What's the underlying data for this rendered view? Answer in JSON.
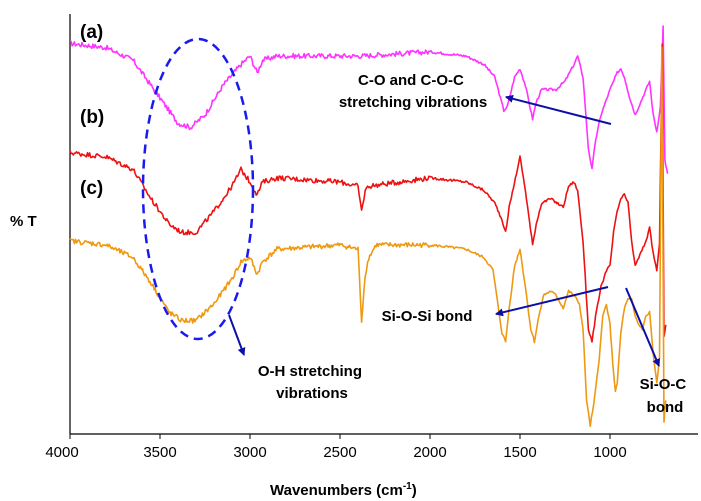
{
  "chart_data": {
    "type": "line",
    "xlabel": "Wavenumbers (cm",
    "xlabel_sup": "-1",
    "xlabel_close": ")",
    "ylabel": "% T",
    "xlim": [
      4000,
      650
    ],
    "x_reversed": true,
    "grid": false,
    "xticks": [
      4000,
      3500,
      3000,
      2500,
      2000,
      1500,
      1000
    ],
    "xtick_labels": [
      "4000",
      "3500",
      "3000",
      "2500",
      "2000",
      "1500",
      "1000"
    ],
    "series": [
      {
        "name": "(a)",
        "color": "#ff33ff",
        "points": [
          [
            4000,
            0.93
          ],
          [
            3800,
            0.92
          ],
          [
            3650,
            0.89
          ],
          [
            3500,
            0.8
          ],
          [
            3400,
            0.74
          ],
          [
            3330,
            0.73
          ],
          [
            3250,
            0.76
          ],
          [
            3150,
            0.83
          ],
          [
            3050,
            0.88
          ],
          [
            3000,
            0.9
          ],
          [
            2960,
            0.86
          ],
          [
            2930,
            0.89
          ],
          [
            2850,
            0.9
          ],
          [
            2500,
            0.9
          ],
          [
            2380,
            0.9
          ],
          [
            2000,
            0.91
          ],
          [
            1800,
            0.9
          ],
          [
            1700,
            0.88
          ],
          [
            1640,
            0.85
          ],
          [
            1590,
            0.77
          ],
          [
            1570,
            0.78
          ],
          [
            1530,
            0.85
          ],
          [
            1500,
            0.87
          ],
          [
            1470,
            0.83
          ],
          [
            1430,
            0.75
          ],
          [
            1410,
            0.79
          ],
          [
            1380,
            0.82
          ],
          [
            1300,
            0.82
          ],
          [
            1250,
            0.84
          ],
          [
            1200,
            0.88
          ],
          [
            1180,
            0.9
          ],
          [
            1150,
            0.85
          ],
          [
            1120,
            0.68
          ],
          [
            1100,
            0.63
          ],
          [
            1080,
            0.7
          ],
          [
            1050,
            0.76
          ],
          [
            1000,
            0.82
          ],
          [
            960,
            0.86
          ],
          [
            940,
            0.87
          ],
          [
            920,
            0.85
          ],
          [
            890,
            0.8
          ],
          [
            860,
            0.76
          ],
          [
            840,
            0.78
          ],
          [
            800,
            0.82
          ],
          [
            780,
            0.84
          ],
          [
            760,
            0.76
          ],
          [
            740,
            0.72
          ],
          [
            720,
            0.78
          ],
          [
            705,
            0.97
          ],
          [
            695,
            0.65
          ],
          [
            680,
            0.62
          ]
        ]
      },
      {
        "name": "(b)",
        "color": "#ee1111",
        "points": [
          [
            4000,
            0.67
          ],
          [
            3800,
            0.66
          ],
          [
            3650,
            0.63
          ],
          [
            3550,
            0.56
          ],
          [
            3450,
            0.5
          ],
          [
            3380,
            0.48
          ],
          [
            3300,
            0.48
          ],
          [
            3200,
            0.53
          ],
          [
            3100,
            0.59
          ],
          [
            3050,
            0.63
          ],
          [
            3000,
            0.6
          ],
          [
            2960,
            0.57
          ],
          [
            2930,
            0.6
          ],
          [
            2850,
            0.61
          ],
          [
            2500,
            0.6
          ],
          [
            2400,
            0.59
          ],
          [
            2380,
            0.53
          ],
          [
            2360,
            0.58
          ],
          [
            2340,
            0.59
          ],
          [
            2000,
            0.61
          ],
          [
            1800,
            0.6
          ],
          [
            1700,
            0.58
          ],
          [
            1640,
            0.55
          ],
          [
            1600,
            0.51
          ],
          [
            1580,
            0.48
          ],
          [
            1560,
            0.54
          ],
          [
            1520,
            0.62
          ],
          [
            1500,
            0.66
          ],
          [
            1470,
            0.58
          ],
          [
            1430,
            0.45
          ],
          [
            1410,
            0.5
          ],
          [
            1380,
            0.55
          ],
          [
            1330,
            0.56
          ],
          [
            1260,
            0.54
          ],
          [
            1230,
            0.59
          ],
          [
            1200,
            0.6
          ],
          [
            1180,
            0.58
          ],
          [
            1150,
            0.46
          ],
          [
            1120,
            0.25
          ],
          [
            1100,
            0.22
          ],
          [
            1080,
            0.28
          ],
          [
            1050,
            0.35
          ],
          [
            1020,
            0.39
          ],
          [
            1000,
            0.4
          ],
          [
            980,
            0.48
          ],
          [
            960,
            0.53
          ],
          [
            940,
            0.56
          ],
          [
            920,
            0.57
          ],
          [
            900,
            0.55
          ],
          [
            880,
            0.46
          ],
          [
            860,
            0.4
          ],
          [
            840,
            0.42
          ],
          [
            800,
            0.46
          ],
          [
            780,
            0.49
          ],
          [
            760,
            0.43
          ],
          [
            740,
            0.39
          ],
          [
            725,
            0.45
          ],
          [
            710,
            0.93
          ],
          [
            700,
            0.23
          ],
          [
            690,
            0.26
          ]
        ]
      },
      {
        "name": "(c)",
        "color": "#ee9911",
        "points": [
          [
            4000,
            0.46
          ],
          [
            3800,
            0.45
          ],
          [
            3650,
            0.42
          ],
          [
            3550,
            0.36
          ],
          [
            3450,
            0.29
          ],
          [
            3380,
            0.27
          ],
          [
            3300,
            0.27
          ],
          [
            3200,
            0.31
          ],
          [
            3100,
            0.37
          ],
          [
            3050,
            0.41
          ],
          [
            3000,
            0.42
          ],
          [
            2960,
            0.38
          ],
          [
            2930,
            0.41
          ],
          [
            2850,
            0.44
          ],
          [
            2500,
            0.45
          ],
          [
            2400,
            0.44
          ],
          [
            2380,
            0.27
          ],
          [
            2360,
            0.38
          ],
          [
            2340,
            0.42
          ],
          [
            2300,
            0.45
          ],
          [
            2000,
            0.45
          ],
          [
            1800,
            0.44
          ],
          [
            1700,
            0.42
          ],
          [
            1650,
            0.39
          ],
          [
            1620,
            0.3
          ],
          [
            1600,
            0.24
          ],
          [
            1580,
            0.22
          ],
          [
            1560,
            0.3
          ],
          [
            1530,
            0.4
          ],
          [
            1500,
            0.44
          ],
          [
            1470,
            0.35
          ],
          [
            1440,
            0.25
          ],
          [
            1420,
            0.22
          ],
          [
            1400,
            0.27
          ],
          [
            1370,
            0.33
          ],
          [
            1330,
            0.34
          ],
          [
            1300,
            0.33
          ],
          [
            1260,
            0.3
          ],
          [
            1230,
            0.34
          ],
          [
            1200,
            0.33
          ],
          [
            1170,
            0.31
          ],
          [
            1150,
            0.25
          ],
          [
            1130,
            0.08
          ],
          [
            1110,
            0.02
          ],
          [
            1090,
            0.07
          ],
          [
            1060,
            0.18
          ],
          [
            1040,
            0.28
          ],
          [
            1020,
            0.31
          ],
          [
            1000,
            0.26
          ],
          [
            985,
            0.17
          ],
          [
            970,
            0.1
          ],
          [
            960,
            0.12
          ],
          [
            940,
            0.24
          ],
          [
            920,
            0.3
          ],
          [
            900,
            0.32
          ],
          [
            880,
            0.32
          ],
          [
            860,
            0.28
          ],
          [
            840,
            0.26
          ],
          [
            820,
            0.25
          ],
          [
            800,
            0.28
          ],
          [
            780,
            0.29
          ],
          [
            760,
            0.19
          ],
          [
            740,
            0.12
          ],
          [
            725,
            0.18
          ],
          [
            712,
            0.92
          ],
          [
            700,
            0.03
          ],
          [
            690,
            0.08
          ]
        ]
      }
    ],
    "annotations": [
      {
        "lines": [
          "C-O and C-O-C",
          "stretching vibrations"
        ]
      },
      {
        "lines": [
          "Si-O-Si bond"
        ]
      },
      {
        "lines": [
          "O-H stretching",
          "vibrations"
        ]
      },
      {
        "lines": [
          "Si-O-C",
          "bond"
        ]
      }
    ]
  }
}
